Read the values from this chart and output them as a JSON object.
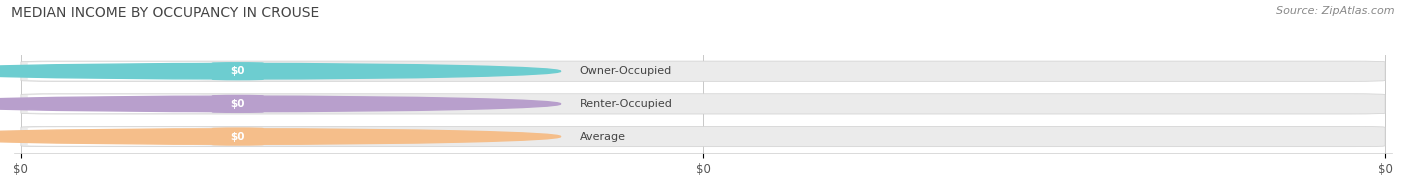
{
  "title": "MEDIAN INCOME BY OCCUPANCY IN CROUSE",
  "source": "Source: ZipAtlas.com",
  "categories": [
    "Owner-Occupied",
    "Renter-Occupied",
    "Average"
  ],
  "values": [
    0,
    0,
    0
  ],
  "bar_colors": [
    "#6DCDD0",
    "#B89FCC",
    "#F5BE8A"
  ],
  "bar_bg_color": "#EBEBEB",
  "label_bg_color": "#FFFFFF",
  "bar_value_labels": [
    "$0",
    "$0",
    "$0"
  ],
  "xtick_labels": [
    "$0",
    "$0",
    "$0"
  ],
  "xtick_positions": [
    0.0,
    0.5,
    1.0
  ],
  "xlim": [
    0,
    1
  ],
  "title_fontsize": 10,
  "source_fontsize": 8,
  "figsize": [
    14.06,
    1.96
  ],
  "dpi": 100,
  "bar_height": 0.62,
  "background_color": "#FFFFFF",
  "grid_color": "#C8C8C8"
}
